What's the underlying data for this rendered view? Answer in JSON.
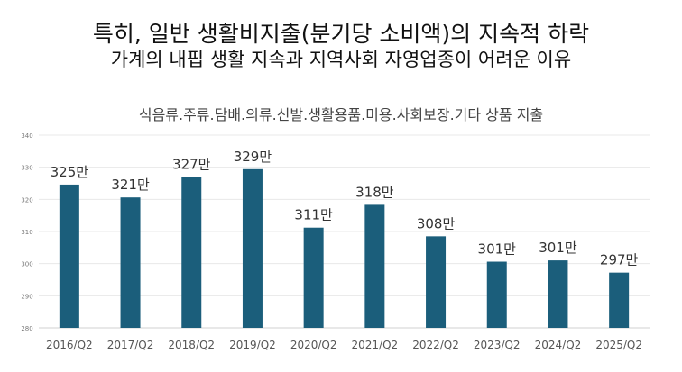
{
  "header": {
    "title": "특히, 일반 생활비지출(분기당 소비액)의 지속적 하락",
    "subtitle": "가계의 내핍 생활 지속과 지역사회 자영업종이 어려운 이유"
  },
  "chart_data": {
    "type": "bar",
    "title": "식음류.주류.담배.의류.신발.생활용품.미용.사회보장.기타 상품 지출",
    "xlabel": "",
    "ylabel": "",
    "ylim": [
      280,
      340
    ],
    "yticks": [
      280,
      290,
      300,
      310,
      320,
      330,
      340
    ],
    "grid": true,
    "categories": [
      "2016/Q2",
      "2017/Q2",
      "2018/Q2",
      "2019/Q2",
      "2020/Q2",
      "2021/Q2",
      "2022/Q2",
      "2023/Q2",
      "2024/Q2",
      "2025/Q2"
    ],
    "values": [
      324.6,
      320.6,
      327.0,
      329.4,
      311.2,
      318.3,
      308.5,
      300.6,
      301.0,
      297.2
    ],
    "data_labels": [
      "325만",
      "321만",
      "327만",
      "329만",
      "311만",
      "318만",
      "308만",
      "301만",
      "301만",
      "297만"
    ],
    "bar_color": "#1b5e7b"
  }
}
